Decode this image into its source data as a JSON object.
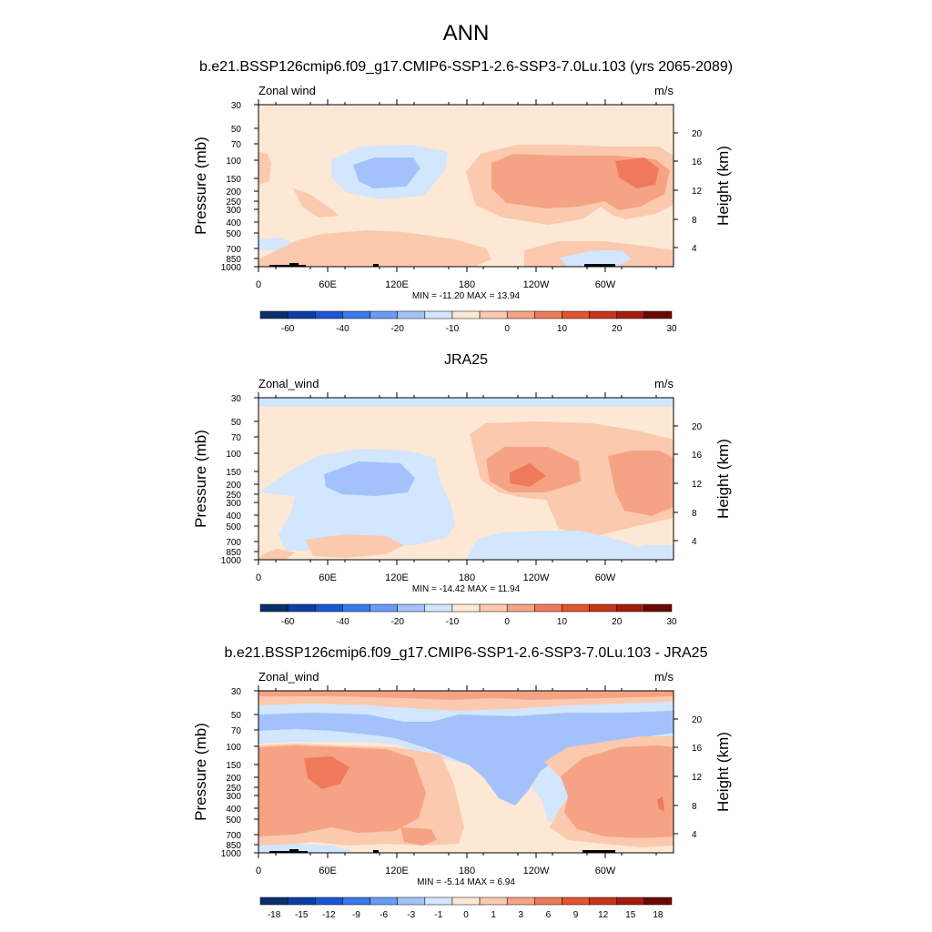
{
  "page": {
    "title": "ANN"
  },
  "chart_data": [
    {
      "type": "heatmap",
      "title": "b.e21.BSSP126cmip6.f09_g17.CMIP6-SSP1-2.6-SSP3-7.0Lu.103 (yrs 2065-2089)",
      "left_label": "Zonal wind",
      "units": "m/s",
      "ylabel": "Pressure (mb)",
      "ylabel_right": "Height (km)",
      "xticks": [
        "0",
        "60E",
        "120E",
        "180",
        "120W",
        "60W"
      ],
      "pressure_ticks": [
        "30",
        "50",
        "70",
        "100",
        "150",
        "200",
        "250",
        "300",
        "400",
        "500",
        "700",
        "850",
        "1000"
      ],
      "height_ticks": [
        "20",
        "16",
        "12",
        "8",
        "4"
      ],
      "minmax_text": "MIN = -11.20  MAX =  13.94",
      "min": -11.2,
      "max": 13.94,
      "colorbar_labels": [
        "-60",
        "-40",
        "-20",
        "-10",
        "0",
        "10",
        "20",
        "30"
      ],
      "colors": [
        "#08306b",
        "#0a3fa8",
        "#1c56d6",
        "#3c78ea",
        "#6a9cf6",
        "#a3c2fb",
        "#d2e6fd",
        "#fde8d6",
        "#fbc9ae",
        "#f6a385",
        "#ef7a5b",
        "#e4532f",
        "#c8351a",
        "#a11e0d",
        "#6b0a04"
      ]
    },
    {
      "type": "heatmap",
      "title": "JRA25",
      "left_label": "Zonal_wind",
      "units": "m/s",
      "ylabel": "Pressure (mb)",
      "ylabel_right": "Height (km)",
      "xticks": [
        "0",
        "60E",
        "120E",
        "180",
        "120W",
        "60W"
      ],
      "pressure_ticks": [
        "30",
        "50",
        "70",
        "100",
        "150",
        "200",
        "250",
        "300",
        "400",
        "500",
        "700",
        "850",
        "1000"
      ],
      "height_ticks": [
        "20",
        "16",
        "12",
        "8",
        "4"
      ],
      "minmax_text": "MIN = -14.42  MAX =  11.94",
      "min": -14.42,
      "max": 11.94,
      "colorbar_labels": [
        "-60",
        "-40",
        "-20",
        "-10",
        "0",
        "10",
        "20",
        "30"
      ],
      "colors": [
        "#08306b",
        "#0a3fa8",
        "#1c56d6",
        "#3c78ea",
        "#6a9cf6",
        "#a3c2fb",
        "#d2e6fd",
        "#fde8d6",
        "#fbc9ae",
        "#f6a385",
        "#ef7a5b",
        "#e4532f",
        "#c8351a",
        "#a11e0d",
        "#6b0a04"
      ]
    },
    {
      "type": "heatmap",
      "title": "b.e21.BSSP126cmip6.f09_g17.CMIP6-SSP1-2.6-SSP3-7.0Lu.103 - JRA25",
      "left_label": "Zonal_wind",
      "units": "m/s",
      "ylabel": "Pressure (mb)",
      "ylabel_right": "Height (km)",
      "xticks": [
        "0",
        "60E",
        "120E",
        "180",
        "120W",
        "60W"
      ],
      "pressure_ticks": [
        "30",
        "50",
        "70",
        "100",
        "150",
        "200",
        "250",
        "300",
        "400",
        "500",
        "700",
        "850",
        "1000"
      ],
      "height_ticks": [
        "20",
        "16",
        "12",
        "8",
        "4"
      ],
      "minmax_text": "MIN =  -5.14  MAX =   6.94",
      "min": -5.14,
      "max": 6.94,
      "colorbar_labels": [
        "-18",
        "-15",
        "-12",
        "-9",
        "-6",
        "-3",
        "-1",
        "0",
        "1",
        "3",
        "6",
        "9",
        "12",
        "15",
        "18"
      ],
      "colors": [
        "#08306b",
        "#0a3fa8",
        "#1c56d6",
        "#3c78ea",
        "#6a9cf6",
        "#a3c2fb",
        "#d2e6fd",
        "#fde8d6",
        "#fbc9ae",
        "#f6a385",
        "#ef7a5b",
        "#e4532f",
        "#c8351a",
        "#a11e0d",
        "#6b0a04"
      ]
    }
  ]
}
